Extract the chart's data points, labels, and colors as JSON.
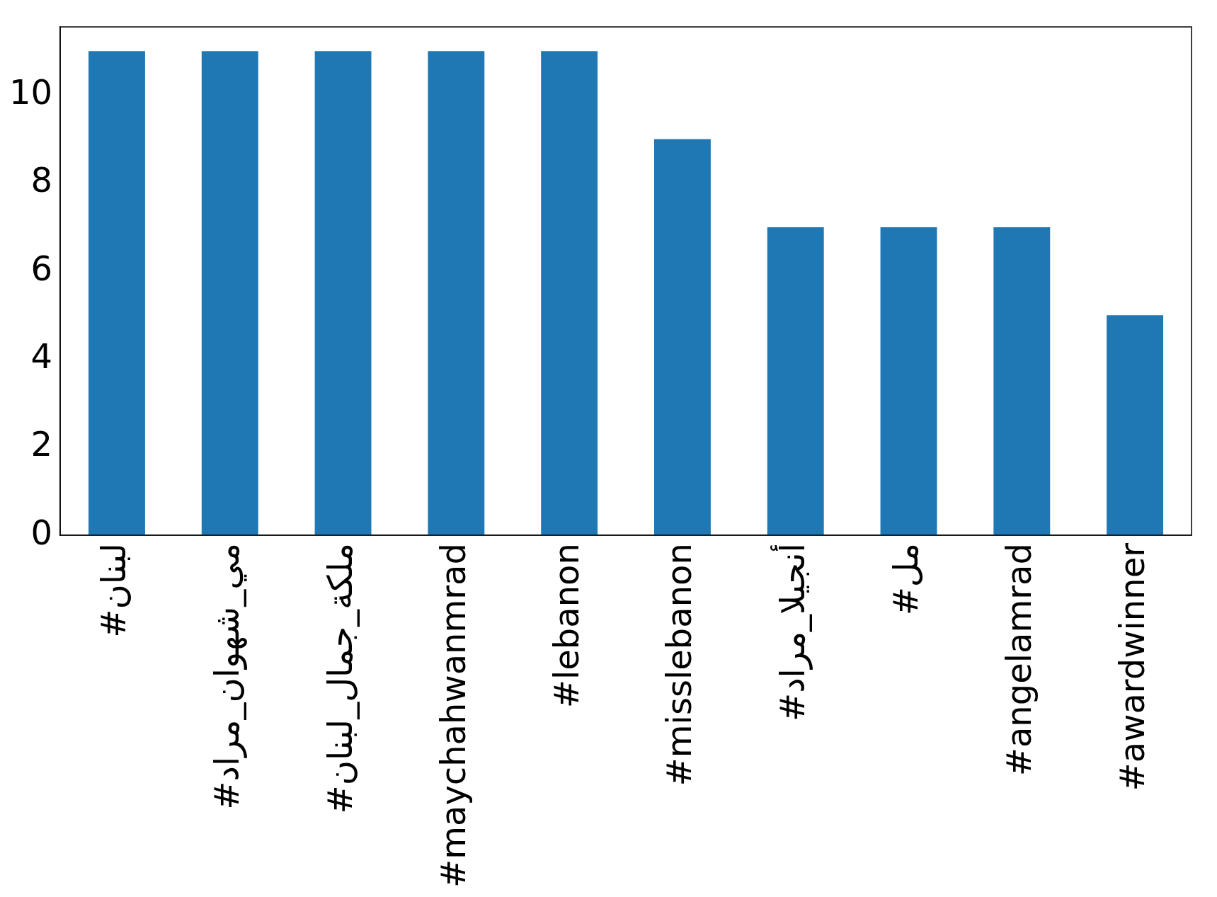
{
  "chart_data": {
    "type": "bar",
    "categories": [
      "#لبنان",
      "#مي_شهوان_مراد",
      "#ملكة_جمال_لبنان",
      "#maychahwanmrad",
      "#lebanon",
      "#misslebanon",
      "#أنجيلا_مراد",
      "#مل",
      "#angelamrad",
      "#awardwinner"
    ],
    "values": [
      11,
      11,
      11,
      11,
      11,
      9,
      7,
      7,
      7,
      5
    ],
    "color": "#1f77b4",
    "ylim": [
      0,
      11.55
    ],
    "yticks": [
      0,
      2,
      4,
      6,
      8,
      10
    ],
    "grid": false,
    "legend": false
  }
}
